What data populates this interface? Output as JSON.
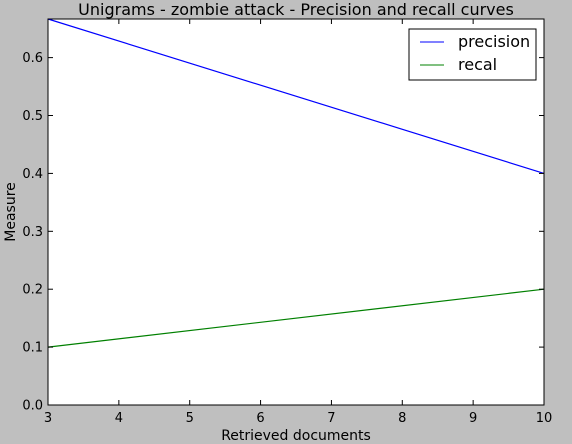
{
  "chart_data": {
    "type": "line",
    "title": "Unigrams - zombie attack - Precision and recall curves",
    "xlabel": "Retrieved documents",
    "ylabel": "Measure",
    "xlim": [
      3,
      10
    ],
    "ylim": [
      0.0,
      0.6667
    ],
    "xticks": [
      "3",
      "4",
      "5",
      "6",
      "7",
      "8",
      "9",
      "10"
    ],
    "yticks": [
      "0.0",
      "0.1",
      "0.2",
      "0.3",
      "0.4",
      "0.5",
      "0.6"
    ],
    "grid": false,
    "legend": "top-right",
    "series": [
      {
        "name": "precision",
        "color": "#0000ff",
        "x": [
          3,
          10
        ],
        "y": [
          0.6667,
          0.4
        ]
      },
      {
        "name": "recal",
        "color": "#008000",
        "x": [
          3,
          10
        ],
        "y": [
          0.1,
          0.2
        ]
      }
    ]
  }
}
